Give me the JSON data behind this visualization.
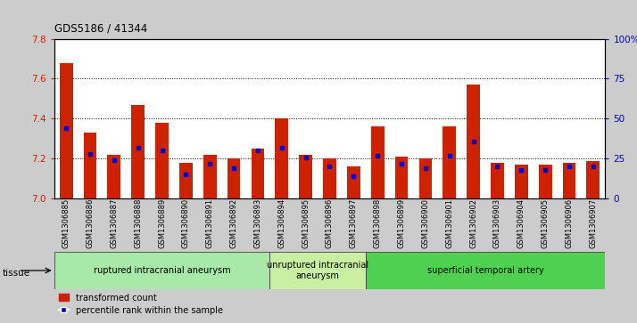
{
  "title": "GDS5186 / 41344",
  "samples": [
    "GSM1306885",
    "GSM1306886",
    "GSM1306887",
    "GSM1306888",
    "GSM1306889",
    "GSM1306890",
    "GSM1306891",
    "GSM1306892",
    "GSM1306893",
    "GSM1306894",
    "GSM1306895",
    "GSM1306896",
    "GSM1306897",
    "GSM1306898",
    "GSM1306899",
    "GSM1306900",
    "GSM1306901",
    "GSM1306902",
    "GSM1306903",
    "GSM1306904",
    "GSM1306905",
    "GSM1306906",
    "GSM1306907"
  ],
  "red_values": [
    7.68,
    7.33,
    7.22,
    7.47,
    7.38,
    7.18,
    7.22,
    7.2,
    7.25,
    7.4,
    7.22,
    7.2,
    7.16,
    7.36,
    7.21,
    7.2,
    7.36,
    7.57,
    7.18,
    7.17,
    7.17,
    7.18,
    7.19
  ],
  "blue_values": [
    44,
    28,
    24,
    32,
    30,
    15,
    22,
    19,
    30,
    32,
    26,
    20,
    14,
    27,
    22,
    19,
    27,
    36,
    20,
    18,
    18,
    20,
    20
  ],
  "groups": [
    {
      "label": "ruptured intracranial aneurysm",
      "start": 0,
      "end": 9
    },
    {
      "label": "unruptured intracranial\naneurysm",
      "start": 9,
      "end": 13
    },
    {
      "label": "superficial temporal artery",
      "start": 13,
      "end": 23
    }
  ],
  "group_colors": [
    "#a8e8a8",
    "#c8f0a0",
    "#50d050"
  ],
  "ylim_left": [
    7.0,
    7.8
  ],
  "ylim_right": [
    0,
    100
  ],
  "left_tick_color": "#cc2200",
  "right_tick_color": "#0000cc",
  "bar_color": "#cc2200",
  "marker_color": "#0000cc",
  "bg_color": "#cccccc",
  "plot_bg": "#ffffff",
  "yticks_left": [
    7.0,
    7.2,
    7.4,
    7.6,
    7.8
  ],
  "yticks_right": [
    0,
    25,
    50,
    75,
    100
  ],
  "ytick_labels_right": [
    "0",
    "25",
    "50",
    "75",
    "100%"
  ],
  "grid_lines": [
    7.2,
    7.4,
    7.6
  ]
}
